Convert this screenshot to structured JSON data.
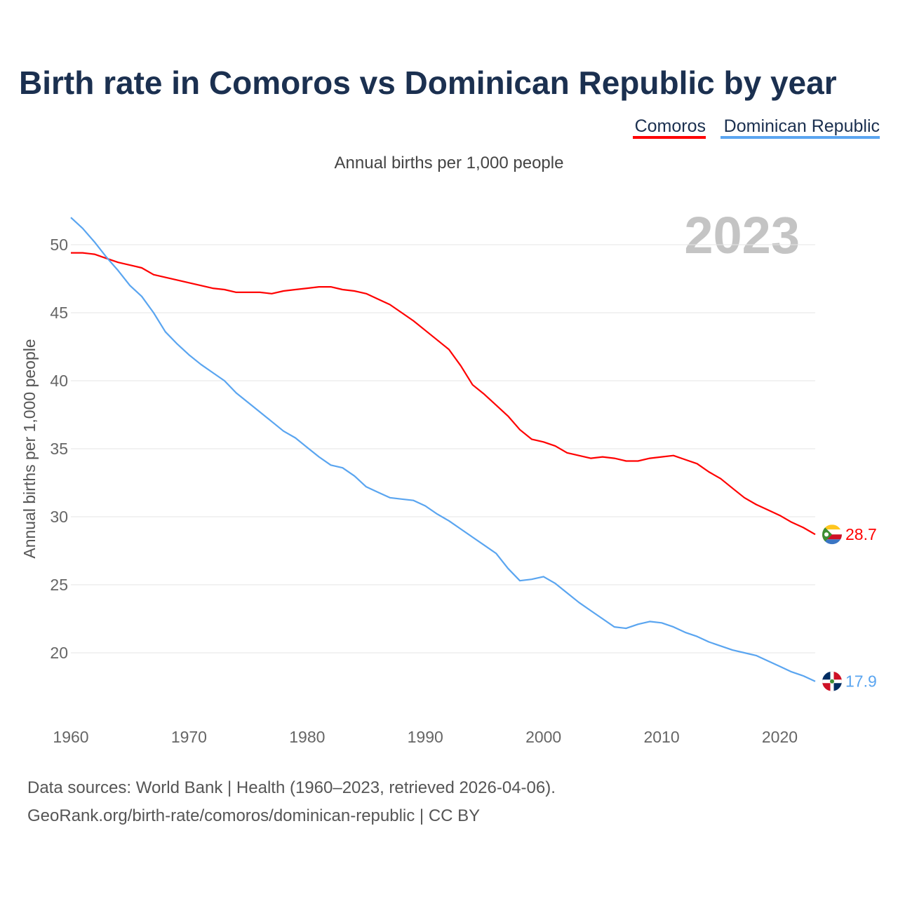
{
  "chart_data": {
    "type": "line",
    "title": "Birth rate in Comoros vs Dominican Republic by year",
    "subtitle": "Annual births per 1,000 people",
    "ylabel": "Annual births per 1,000 people",
    "xlabel": "",
    "year_badge": "2023",
    "xlim": [
      1960,
      2023
    ],
    "ylim": [
      16,
      52
    ],
    "x_ticks": [
      "1960",
      "1970",
      "1980",
      "1990",
      "2000",
      "2010",
      "2020"
    ],
    "y_ticks": [
      "20",
      "25",
      "30",
      "35",
      "40",
      "45",
      "50"
    ],
    "grid": true,
    "legend_position": "top-right",
    "x": [
      1960,
      1961,
      1962,
      1963,
      1964,
      1965,
      1966,
      1967,
      1968,
      1969,
      1970,
      1971,
      1972,
      1973,
      1974,
      1975,
      1976,
      1977,
      1978,
      1979,
      1980,
      1981,
      1982,
      1983,
      1984,
      1985,
      1986,
      1987,
      1988,
      1989,
      1990,
      1991,
      1992,
      1993,
      1994,
      1995,
      1996,
      1997,
      1998,
      1999,
      2000,
      2001,
      2002,
      2003,
      2004,
      2005,
      2006,
      2007,
      2008,
      2009,
      2010,
      2011,
      2012,
      2013,
      2014,
      2015,
      2016,
      2017,
      2018,
      2019,
      2020,
      2021,
      2022,
      2023
    ],
    "series": [
      {
        "name": "Comoros",
        "color": "#ff0000",
        "end_label": "28.7",
        "values": [
          49.4,
          49.4,
          49.3,
          49.0,
          48.7,
          48.5,
          48.3,
          47.8,
          47.6,
          47.4,
          47.2,
          47.0,
          46.8,
          46.7,
          46.5,
          46.5,
          46.5,
          46.4,
          46.6,
          46.7,
          46.8,
          46.9,
          46.9,
          46.7,
          46.6,
          46.4,
          46.0,
          45.6,
          45.0,
          44.4,
          43.7,
          43.0,
          42.3,
          41.1,
          39.7,
          39.0,
          38.2,
          37.4,
          36.4,
          35.7,
          35.5,
          35.2,
          34.7,
          34.5,
          34.3,
          34.4,
          34.3,
          34.1,
          34.1,
          34.3,
          34.4,
          34.5,
          34.2,
          33.9,
          33.3,
          32.8,
          32.1,
          31.4,
          30.9,
          30.5,
          30.1,
          29.6,
          29.2,
          28.7
        ]
      },
      {
        "name": "Dominican Republic",
        "color": "#5aa5f0",
        "end_label": "17.9",
        "values": [
          52.0,
          51.2,
          50.2,
          49.1,
          48.1,
          47.0,
          46.2,
          45.0,
          43.6,
          42.7,
          41.9,
          41.2,
          40.6,
          40.0,
          39.1,
          38.4,
          37.7,
          37.0,
          36.3,
          35.8,
          35.1,
          34.4,
          33.8,
          33.6,
          33.0,
          32.2,
          31.8,
          31.4,
          31.3,
          31.2,
          30.8,
          30.2,
          29.7,
          29.1,
          28.5,
          27.9,
          27.3,
          26.2,
          25.3,
          25.4,
          25.6,
          25.1,
          24.4,
          23.7,
          23.1,
          22.5,
          21.9,
          21.8,
          22.1,
          22.3,
          22.2,
          21.9,
          21.5,
          21.2,
          20.8,
          20.5,
          20.2,
          20.0,
          19.8,
          19.4,
          19.0,
          18.6,
          18.3,
          17.9
        ]
      }
    ]
  },
  "footer": {
    "line1": "Data sources: World Bank | Health (1960–2023, retrieved 2026-04-06).",
    "line2": "GeoRank.org/birth-rate/comoros/dominican-republic | CC BY"
  }
}
